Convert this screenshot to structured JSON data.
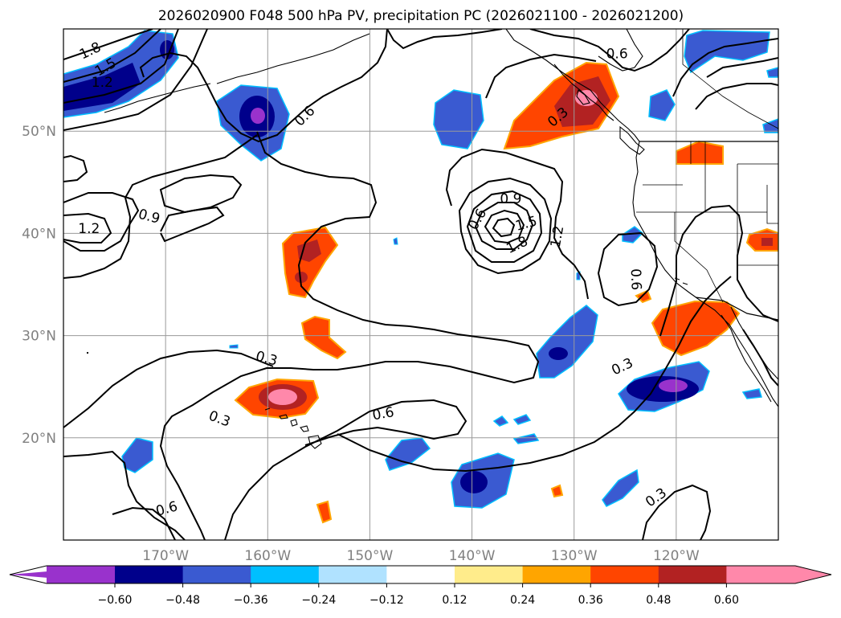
{
  "title": "2026020900 F048 500 hPa PV, precipitation PC (2026021100 - 2026021200)",
  "map": {
    "lon_range": [
      -180,
      -110
    ],
    "lat_range": [
      10,
      60
    ],
    "lon_ticks": [
      {
        "value": -170,
        "label": "170°W"
      },
      {
        "value": -160,
        "label": "160°W"
      },
      {
        "value": -150,
        "label": "150°W"
      },
      {
        "value": -140,
        "label": "140°W"
      },
      {
        "value": -130,
        "label": "130°W"
      },
      {
        "value": -120,
        "label": "120°W"
      }
    ],
    "lat_ticks": [
      {
        "value": 50,
        "label": "50°N"
      },
      {
        "value": 40,
        "label": "40°N"
      },
      {
        "value": 30,
        "label": "30°N"
      },
      {
        "value": 20,
        "label": "20°N"
      }
    ],
    "contour_labels": [
      {
        "text": "1.8",
        "lon": -177.4,
        "lat": 57.9,
        "angle": -25
      },
      {
        "text": "1.5",
        "lon": -175.9,
        "lat": 56.3,
        "angle": -30
      },
      {
        "text": "1.2",
        "lon": -176.2,
        "lat": 54.8,
        "angle": 0
      },
      {
        "text": "0.6",
        "lon": -156.4,
        "lat": 51.5,
        "angle": -45
      },
      {
        "text": "0.9",
        "lon": -171.6,
        "lat": 41.7,
        "angle": 15
      },
      {
        "text": "1.2",
        "lon": -177.5,
        "lat": 40.5,
        "angle": 0
      },
      {
        "text": "0.9",
        "lon": -136.2,
        "lat": 43.4,
        "angle": 0
      },
      {
        "text": "0.6",
        "lon": -139.5,
        "lat": 41.4,
        "angle": -60
      },
      {
        "text": "1.5",
        "lon": -134.7,
        "lat": 41.0,
        "angle": -15
      },
      {
        "text": "1.8",
        "lon": -135.6,
        "lat": 38.9,
        "angle": -25
      },
      {
        "text": "1.2",
        "lon": -131.7,
        "lat": 39.7,
        "angle": -80
      },
      {
        "text": "0.3",
        "lon": -131.6,
        "lat": 51.4,
        "angle": -40
      },
      {
        "text": "0.6",
        "lon": -125.8,
        "lat": 57.6,
        "angle": 0
      },
      {
        "text": "0.6",
        "lon": -123.9,
        "lat": 35.5,
        "angle": 88
      },
      {
        "text": "0.3",
        "lon": -160.1,
        "lat": 27.8,
        "angle": 15
      },
      {
        "text": "0.3",
        "lon": -164.7,
        "lat": 21.9,
        "angle": 20
      },
      {
        "text": "0.6",
        "lon": -148.7,
        "lat": 22.4,
        "angle": -10
      },
      {
        "text": "0.6",
        "lon": -169.9,
        "lat": 13.1,
        "angle": -15
      },
      {
        "text": "0.3",
        "lon": -125.3,
        "lat": 27.0,
        "angle": -25
      },
      {
        "text": "0.3",
        "lon": -122.0,
        "lat": 14.2,
        "angle": -35
      }
    ]
  },
  "colorbar": {
    "colors": [
      "#9932cc",
      "#00008b",
      "#3a5ad1",
      "#00bfff",
      "#b0e2ff",
      "#ffffff",
      "#ffec8b",
      "#ffa500",
      "#ff4500",
      "#b22222",
      "#ff88aa"
    ],
    "tick_labels": [
      "−0.60",
      "−0.48",
      "−0.36",
      "−0.24",
      "−0.12",
      "0.12",
      "0.24",
      "0.36",
      "0.48",
      "0.60"
    ]
  }
}
